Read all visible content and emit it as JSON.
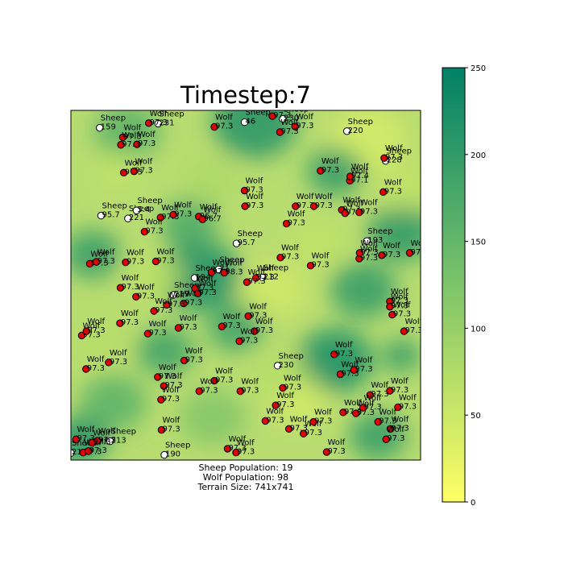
{
  "chart_data": {
    "type": "scatter",
    "title": "Timestep:7",
    "footer": [
      "Sheep Population: 19",
      "Wolf Population: 98",
      "Terrain Size: 741x741"
    ],
    "xlim": [
      0,
      741
    ],
    "ylim": [
      741,
      0
    ],
    "colorbar": {
      "min": 0,
      "max": 250,
      "ticks": [
        0,
        50,
        100,
        150,
        200,
        250
      ],
      "colormap": [
        "#ffff66",
        "#008066"
      ]
    },
    "terrain_blobs": [
      {
        "x": 120,
        "y": 45,
        "r": 70,
        "v": 160
      },
      {
        "x": 390,
        "y": 25,
        "r": 90,
        "v": 215
      },
      {
        "x": 630,
        "y": 60,
        "r": 80,
        "v": 40
      },
      {
        "x": 560,
        "y": 130,
        "r": 60,
        "v": 200
      },
      {
        "x": 100,
        "y": 130,
        "r": 50,
        "v": 60
      },
      {
        "x": 300,
        "y": 150,
        "r": 60,
        "v": 80
      },
      {
        "x": 700,
        "y": 260,
        "r": 70,
        "v": 210
      },
      {
        "x": 270,
        "y": 350,
        "r": 90,
        "v": 220
      },
      {
        "x": 45,
        "y": 305,
        "r": 60,
        "v": 200
      },
      {
        "x": 180,
        "y": 350,
        "r": 55,
        "v": 60
      },
      {
        "x": 430,
        "y": 380,
        "r": 70,
        "v": 45
      },
      {
        "x": 520,
        "y": 280,
        "r": 60,
        "v": 60
      },
      {
        "x": 620,
        "y": 380,
        "r": 70,
        "v": 200
      },
      {
        "x": 60,
        "y": 490,
        "r": 60,
        "v": 70
      },
      {
        "x": 200,
        "y": 510,
        "r": 60,
        "v": 190
      },
      {
        "x": 350,
        "y": 460,
        "r": 60,
        "v": 190
      },
      {
        "x": 560,
        "y": 530,
        "r": 80,
        "v": 225
      },
      {
        "x": 480,
        "y": 615,
        "r": 60,
        "v": 40
      },
      {
        "x": 90,
        "y": 620,
        "r": 70,
        "v": 160
      },
      {
        "x": 300,
        "y": 650,
        "r": 70,
        "v": 120
      },
      {
        "x": 650,
        "y": 690,
        "r": 60,
        "v": 200
      },
      {
        "x": 700,
        "y": 520,
        "r": 40,
        "v": 210
      },
      {
        "x": 250,
        "y": 240,
        "r": 60,
        "v": 175
      },
      {
        "x": 700,
        "y": 160,
        "r": 60,
        "v": 60
      },
      {
        "x": 20,
        "y": 700,
        "r": 60,
        "v": 220
      },
      {
        "x": 440,
        "y": 560,
        "r": 60,
        "v": 70
      }
    ],
    "series": [
      {
        "name": "Sheep",
        "color": "#ffffff",
        "points": [
          {
            "x": 61,
            "y": 37,
            "label": "159"
          },
          {
            "x": 185,
            "y": 28,
            "label": "231"
          },
          {
            "x": 368,
            "y": 25,
            "label": "46"
          },
          {
            "x": 449,
            "y": 18,
            "label": "230"
          },
          {
            "x": 585,
            "y": 44,
            "label": "220"
          },
          {
            "x": 667,
            "y": 107,
            "label": "228"
          },
          {
            "x": 64,
            "y": 223,
            "label": "95.7"
          },
          {
            "x": 121,
            "y": 229,
            "label": "221"
          },
          {
            "x": 139,
            "y": 212,
            "label": "5.4"
          },
          {
            "x": 351,
            "y": 282,
            "label": "95.7"
          },
          {
            "x": 262,
            "y": 355,
            "label": "194"
          },
          {
            "x": 313,
            "y": 337,
            "label": "71"
          },
          {
            "x": 406,
            "y": 354,
            "label": "212"
          },
          {
            "x": 217,
            "y": 391,
            "label": "219"
          },
          {
            "x": 627,
            "y": 277,
            "label": "193"
          },
          {
            "x": 438,
            "y": 541,
            "label": "230"
          },
          {
            "x": 83,
            "y": 701,
            "label": "213"
          },
          {
            "x": 198,
            "y": 730,
            "label": "190"
          },
          {
            "x": 0,
            "y": 726,
            "label": "218"
          }
        ]
      },
      {
        "name": "Wolf",
        "color": "#dd0000",
        "points": [
          {
            "x": 165,
            "y": 27,
            "label": "97.3"
          },
          {
            "x": 304,
            "y": 35,
            "label": "97.3"
          },
          {
            "x": 427,
            "y": 12,
            "label": "97.3"
          },
          {
            "x": 475,
            "y": 34,
            "label": "97.3"
          },
          {
            "x": 443,
            "y": 46,
            "label": "97.3"
          },
          {
            "x": 110,
            "y": 57,
            "label": "97.3"
          },
          {
            "x": 140,
            "y": 72,
            "label": "97.3"
          },
          {
            "x": 106,
            "y": 73,
            "label": "97.3"
          },
          {
            "x": 112,
            "y": 132,
            "label": "97.3"
          },
          {
            "x": 134,
            "y": 129,
            "label": "97.3"
          },
          {
            "x": 529,
            "y": 128,
            "label": "97.3"
          },
          {
            "x": 591,
            "y": 149,
            "label": "97.1"
          },
          {
            "x": 592,
            "y": 140,
            "label": "97.4"
          },
          {
            "x": 662,
            "y": 173,
            "label": "97.3"
          },
          {
            "x": 664,
            "y": 101,
            "label": "97.3"
          },
          {
            "x": 368,
            "y": 170,
            "label": "97.3"
          },
          {
            "x": 369,
            "y": 203,
            "label": "97.3"
          },
          {
            "x": 476,
            "y": 203,
            "label": "97.3"
          },
          {
            "x": 515,
            "y": 203,
            "label": "97.3"
          },
          {
            "x": 457,
            "y": 240,
            "label": "97.3"
          },
          {
            "x": 574,
            "y": 211,
            "label": "97.3"
          },
          {
            "x": 581,
            "y": 218,
            "label": "97.3"
          },
          {
            "x": 611,
            "y": 216,
            "label": "97.3"
          },
          {
            "x": 190,
            "y": 227,
            "label": "97.3"
          },
          {
            "x": 217,
            "y": 221,
            "label": "97.3"
          },
          {
            "x": 271,
            "y": 225,
            "label": "96.7"
          },
          {
            "x": 279,
            "y": 231,
            "label": "96.7"
          },
          {
            "x": 156,
            "y": 257,
            "label": "97.3"
          },
          {
            "x": 40,
            "y": 325,
            "label": "97.3"
          },
          {
            "x": 54,
            "y": 321,
            "label": "97.3"
          },
          {
            "x": 116,
            "y": 322,
            "label": "97.3"
          },
          {
            "x": 180,
            "y": 320,
            "label": "97.3"
          },
          {
            "x": 444,
            "y": 312,
            "label": "97.3"
          },
          {
            "x": 508,
            "y": 329,
            "label": "97.3"
          },
          {
            "x": 611,
            "y": 314,
            "label": "97.3"
          },
          {
            "x": 612,
            "y": 302,
            "label": "97.3"
          },
          {
            "x": 659,
            "y": 307,
            "label": "97.3"
          },
          {
            "x": 718,
            "y": 302,
            "label": "97.3"
          },
          {
            "x": 298,
            "y": 343,
            "label": "97.3"
          },
          {
            "x": 325,
            "y": 344,
            "label": "98.3"
          },
          {
            "x": 392,
            "y": 355,
            "label": "97.3"
          },
          {
            "x": 373,
            "y": 364,
            "label": "97.3"
          },
          {
            "x": 105,
            "y": 376,
            "label": "97.3"
          },
          {
            "x": 138,
            "y": 395,
            "label": "97.3"
          },
          {
            "x": 263,
            "y": 377,
            "label": "97.3"
          },
          {
            "x": 269,
            "y": 388,
            "label": "97.3"
          },
          {
            "x": 239,
            "y": 409,
            "label": "97.3"
          },
          {
            "x": 203,
            "y": 412,
            "label": "97.3"
          },
          {
            "x": 176,
            "y": 425,
            "label": "97.3"
          },
          {
            "x": 676,
            "y": 405,
            "label": "97.3"
          },
          {
            "x": 676,
            "y": 416,
            "label": "97.3"
          },
          {
            "x": 681,
            "y": 433,
            "label": "97.3"
          },
          {
            "x": 706,
            "y": 468,
            "label": "97.3"
          },
          {
            "x": 23,
            "y": 477,
            "label": "97.3"
          },
          {
            "x": 33,
            "y": 468,
            "label": "97.3"
          },
          {
            "x": 104,
            "y": 451,
            "label": "97.3"
          },
          {
            "x": 163,
            "y": 473,
            "label": "97.3"
          },
          {
            "x": 228,
            "y": 461,
            "label": "97.3"
          },
          {
            "x": 320,
            "y": 458,
            "label": "97.3"
          },
          {
            "x": 376,
            "y": 436,
            "label": "97.3"
          },
          {
            "x": 389,
            "y": 468,
            "label": "97.3"
          },
          {
            "x": 357,
            "y": 489,
            "label": "97.3"
          },
          {
            "x": 32,
            "y": 548,
            "label": "97.3"
          },
          {
            "x": 80,
            "y": 534,
            "label": "97.3"
          },
          {
            "x": 240,
            "y": 530,
            "label": "97.3"
          },
          {
            "x": 184,
            "y": 565,
            "label": "97.3"
          },
          {
            "x": 197,
            "y": 584,
            "label": "97.3"
          },
          {
            "x": 191,
            "y": 613,
            "label": "97.3"
          },
          {
            "x": 304,
            "y": 573,
            "label": "97.3"
          },
          {
            "x": 272,
            "y": 595,
            "label": "97.3"
          },
          {
            "x": 359,
            "y": 595,
            "label": "97.3"
          },
          {
            "x": 449,
            "y": 588,
            "label": "97.3"
          },
          {
            "x": 558,
            "y": 517,
            "label": "97.3"
          },
          {
            "x": 571,
            "y": 559,
            "label": "97.3"
          },
          {
            "x": 600,
            "y": 550,
            "label": "97.3"
          },
          {
            "x": 634,
            "y": 603,
            "label": "97.3"
          },
          {
            "x": 676,
            "y": 594,
            "label": "97.3"
          },
          {
            "x": 693,
            "y": 629,
            "label": "97.3"
          },
          {
            "x": 434,
            "y": 625,
            "label": "97.3"
          },
          {
            "x": 412,
            "y": 658,
            "label": "97.3"
          },
          {
            "x": 462,
            "y": 675,
            "label": "97.3"
          },
          {
            "x": 493,
            "y": 685,
            "label": "97.3"
          },
          {
            "x": 514,
            "y": 660,
            "label": "97.3"
          },
          {
            "x": 577,
            "y": 640,
            "label": "97.3"
          },
          {
            "x": 604,
            "y": 642,
            "label": "97.3"
          },
          {
            "x": 619,
            "y": 630,
            "label": "97.3"
          },
          {
            "x": 651,
            "y": 660,
            "label": "97.3"
          },
          {
            "x": 677,
            "y": 675,
            "label": "97.3"
          },
          {
            "x": 668,
            "y": 697,
            "label": "97.3"
          },
          {
            "x": 542,
            "y": 724,
            "label": "97.3"
          },
          {
            "x": 192,
            "y": 677,
            "label": "97.3"
          },
          {
            "x": 332,
            "y": 717,
            "label": "97.3"
          },
          {
            "x": 350,
            "y": 725,
            "label": "97.3"
          },
          {
            "x": 11,
            "y": 697,
            "label": "97.3"
          },
          {
            "x": 26,
            "y": 725,
            "label": "97.3"
          },
          {
            "x": 37,
            "y": 722,
            "label": "97.3"
          },
          {
            "x": 56,
            "y": 700,
            "label": "97.3"
          },
          {
            "x": 45,
            "y": 704,
            "label": "97.3"
          }
        ]
      }
    ]
  }
}
